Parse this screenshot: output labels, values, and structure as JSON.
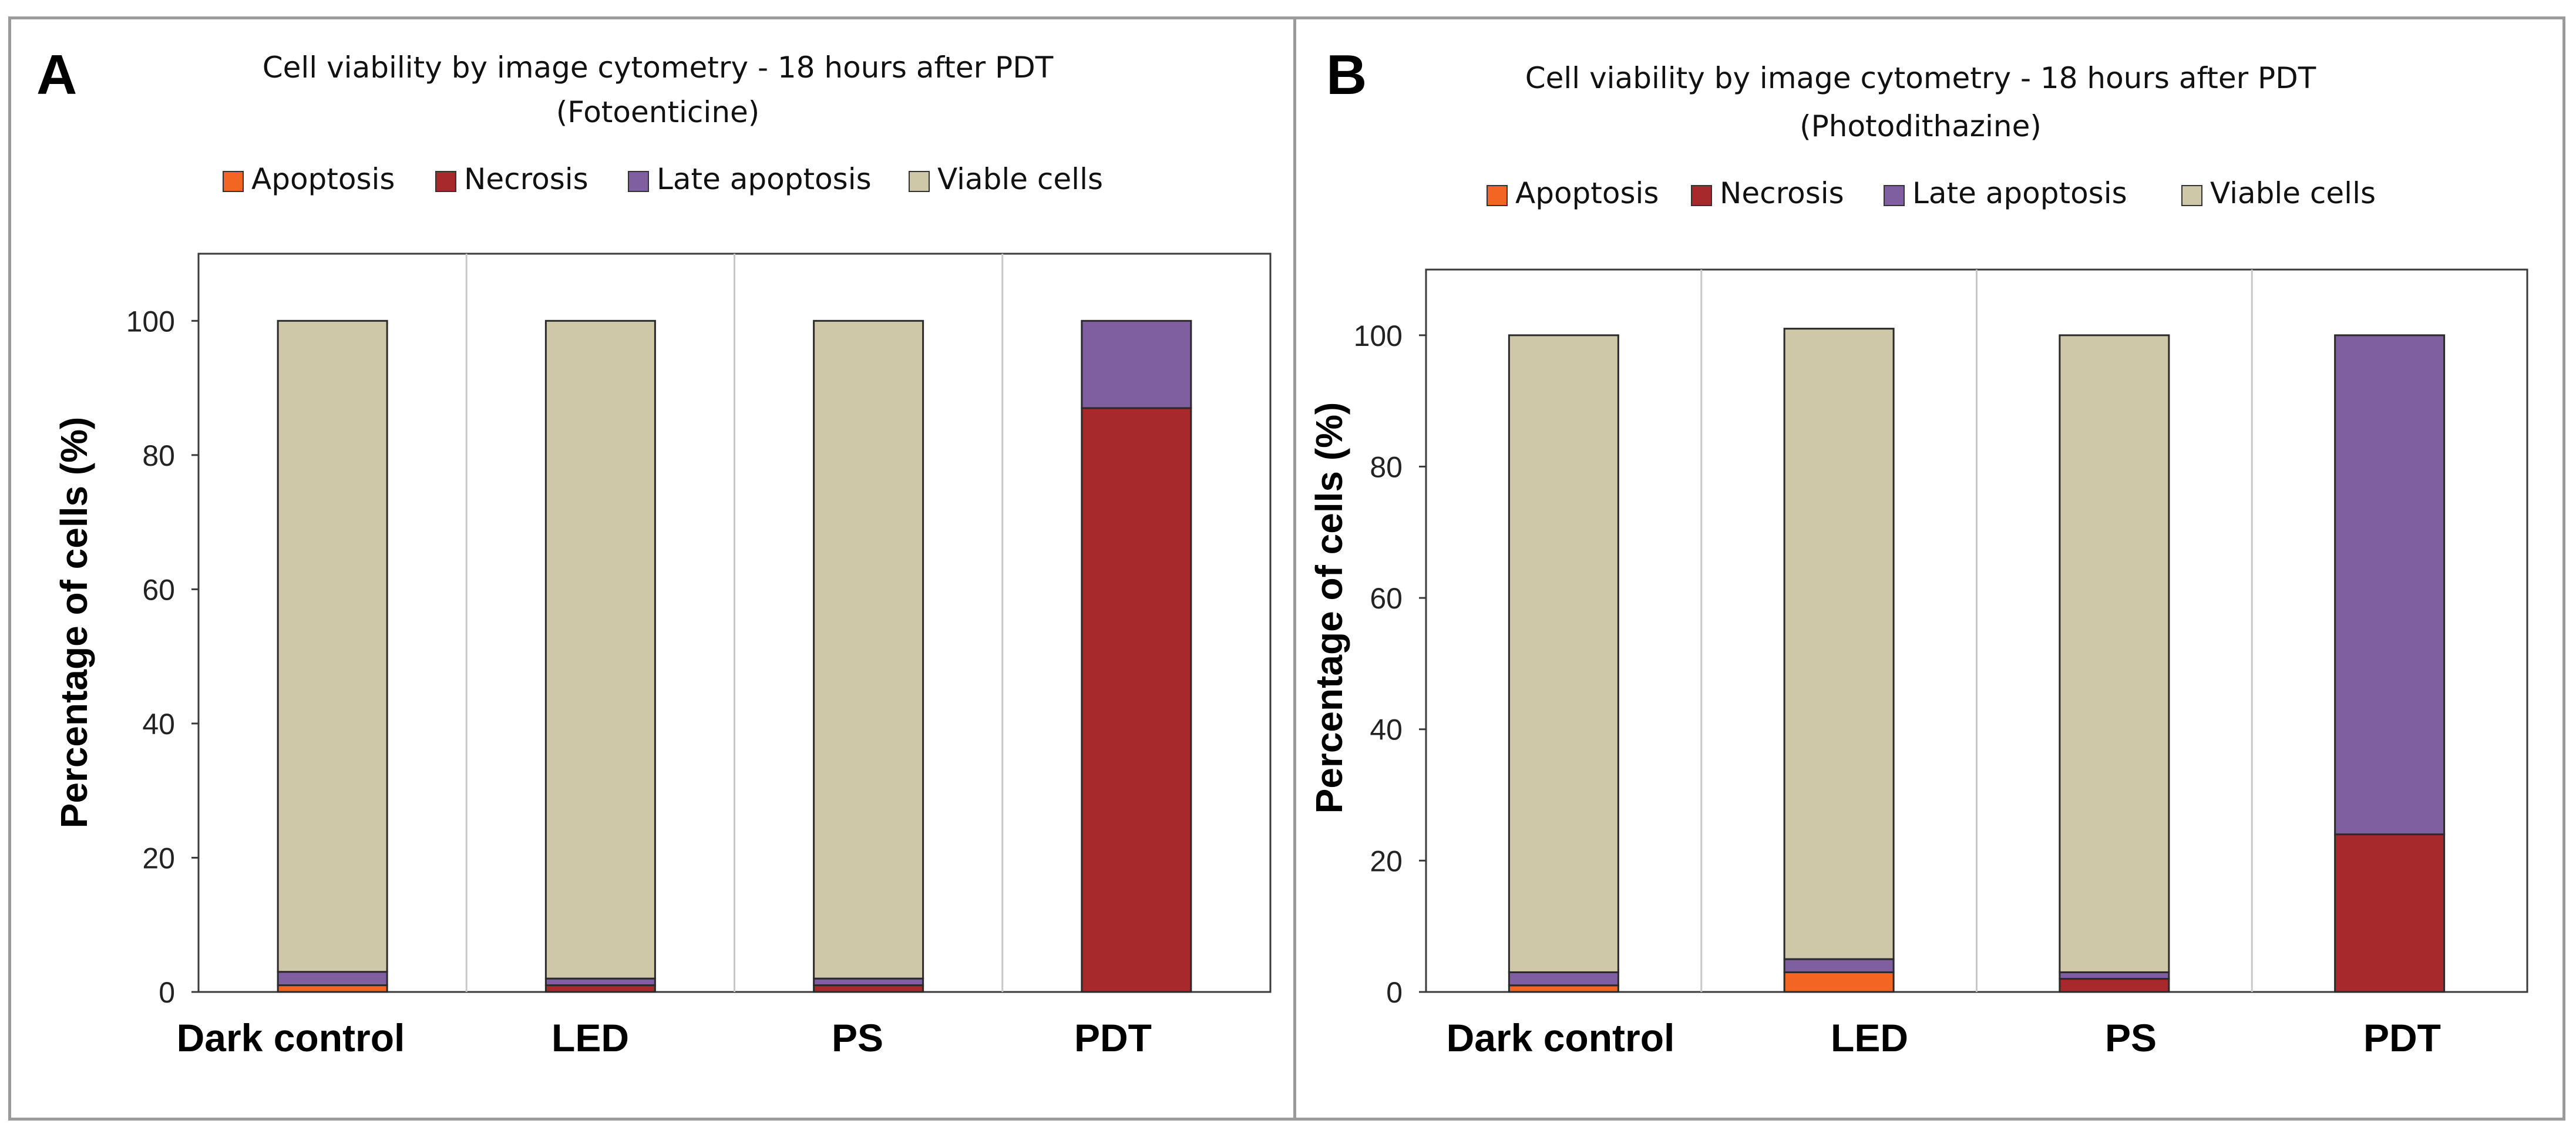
{
  "chart_data": [
    {
      "type": "bar",
      "stacked": true,
      "panel_letter": "A",
      "title": "Cell viability by image cytometry - 18 hours after PDT",
      "subtitle": "(Fotoenticine)",
      "xlabel": "",
      "ylabel": "Percentage of cells (%)",
      "ylim": [
        0,
        110
      ],
      "yticks": [
        0,
        20,
        40,
        60,
        80,
        100
      ],
      "categories": [
        "Dark control",
        "LED",
        "PS",
        "PDT"
      ],
      "series": [
        {
          "name": "Apoptosis",
          "color": "#f26522",
          "values": [
            1,
            0,
            0,
            0
          ]
        },
        {
          "name": "Necrosis",
          "color": "#a8292b",
          "values": [
            0,
            1,
            1,
            87
          ]
        },
        {
          "name": "Late apoptosis",
          "color": "#7f5fa0",
          "values": [
            2,
            1,
            1,
            13
          ]
        },
        {
          "name": "Viable cells",
          "color": "#cfc8a8",
          "values": [
            97,
            98,
            98,
            0
          ]
        }
      ],
      "legend_position": "top"
    },
    {
      "type": "bar",
      "stacked": true,
      "panel_letter": "B",
      "title": "Cell viability by image cytometry - 18 hours after PDT",
      "subtitle": "(Photodithazine)",
      "xlabel": "",
      "ylabel": "Percentage of cells (%)",
      "ylim": [
        0,
        110
      ],
      "yticks": [
        0,
        20,
        40,
        60,
        80,
        100
      ],
      "categories": [
        "Dark control",
        "LED",
        "PS",
        "PDT"
      ],
      "series": [
        {
          "name": "Apoptosis",
          "color": "#f26522",
          "values": [
            1,
            3,
            0,
            0
          ]
        },
        {
          "name": "Necrosis",
          "color": "#a8292b",
          "values": [
            0,
            0,
            2,
            24
          ]
        },
        {
          "name": "Late apoptosis",
          "color": "#7f5fa0",
          "values": [
            2,
            2,
            1,
            76
          ]
        },
        {
          "name": "Viable cells",
          "color": "#cfc8a8",
          "values": [
            97,
            96,
            97,
            0
          ]
        }
      ],
      "legend_position": "top"
    }
  ]
}
